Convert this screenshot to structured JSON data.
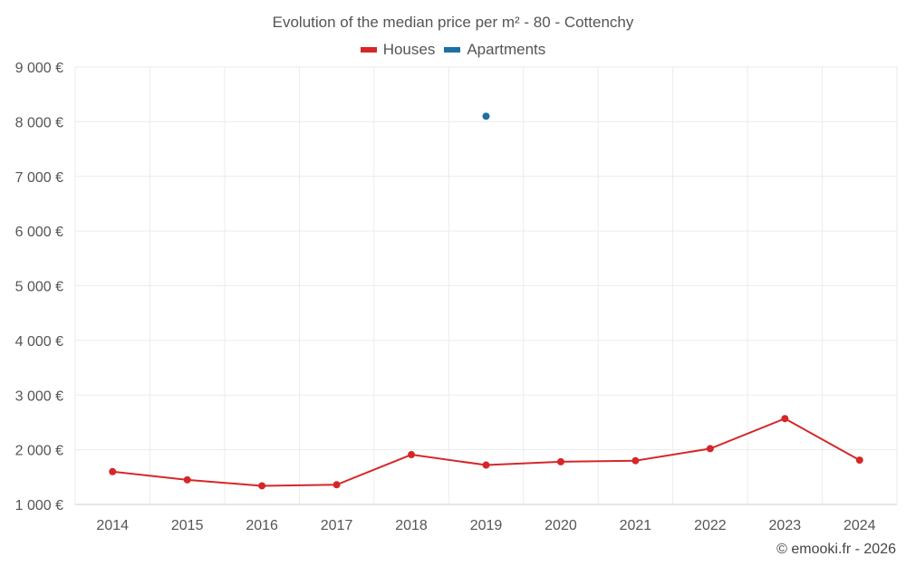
{
  "chart_data": {
    "type": "line",
    "title": "Evolution of the median price per m² - 80 - Cottenchy",
    "xlabel": "",
    "ylabel": "",
    "categories": [
      "2014",
      "2015",
      "2016",
      "2017",
      "2018",
      "2019",
      "2020",
      "2021",
      "2022",
      "2023",
      "2024"
    ],
    "y_ticks": [
      "1 000 €",
      "2 000 €",
      "3 000 €",
      "4 000 €",
      "5 000 €",
      "6 000 €",
      "7 000 €",
      "8 000 €",
      "9 000 €"
    ],
    "ylim": [
      1000,
      9000
    ],
    "grid": true,
    "legend_position": "top-center",
    "series": [
      {
        "name": "Houses",
        "color": "#d62728",
        "values": [
          1600,
          1450,
          1340,
          1360,
          1910,
          1720,
          1780,
          1800,
          2020,
          2570,
          1810
        ]
      },
      {
        "name": "Apartments",
        "color": "#1f6fa3",
        "values": [
          null,
          null,
          null,
          null,
          null,
          8100,
          null,
          null,
          null,
          null,
          null
        ]
      }
    ]
  },
  "footer": {
    "credit": "© emooki.fr - 2026"
  }
}
